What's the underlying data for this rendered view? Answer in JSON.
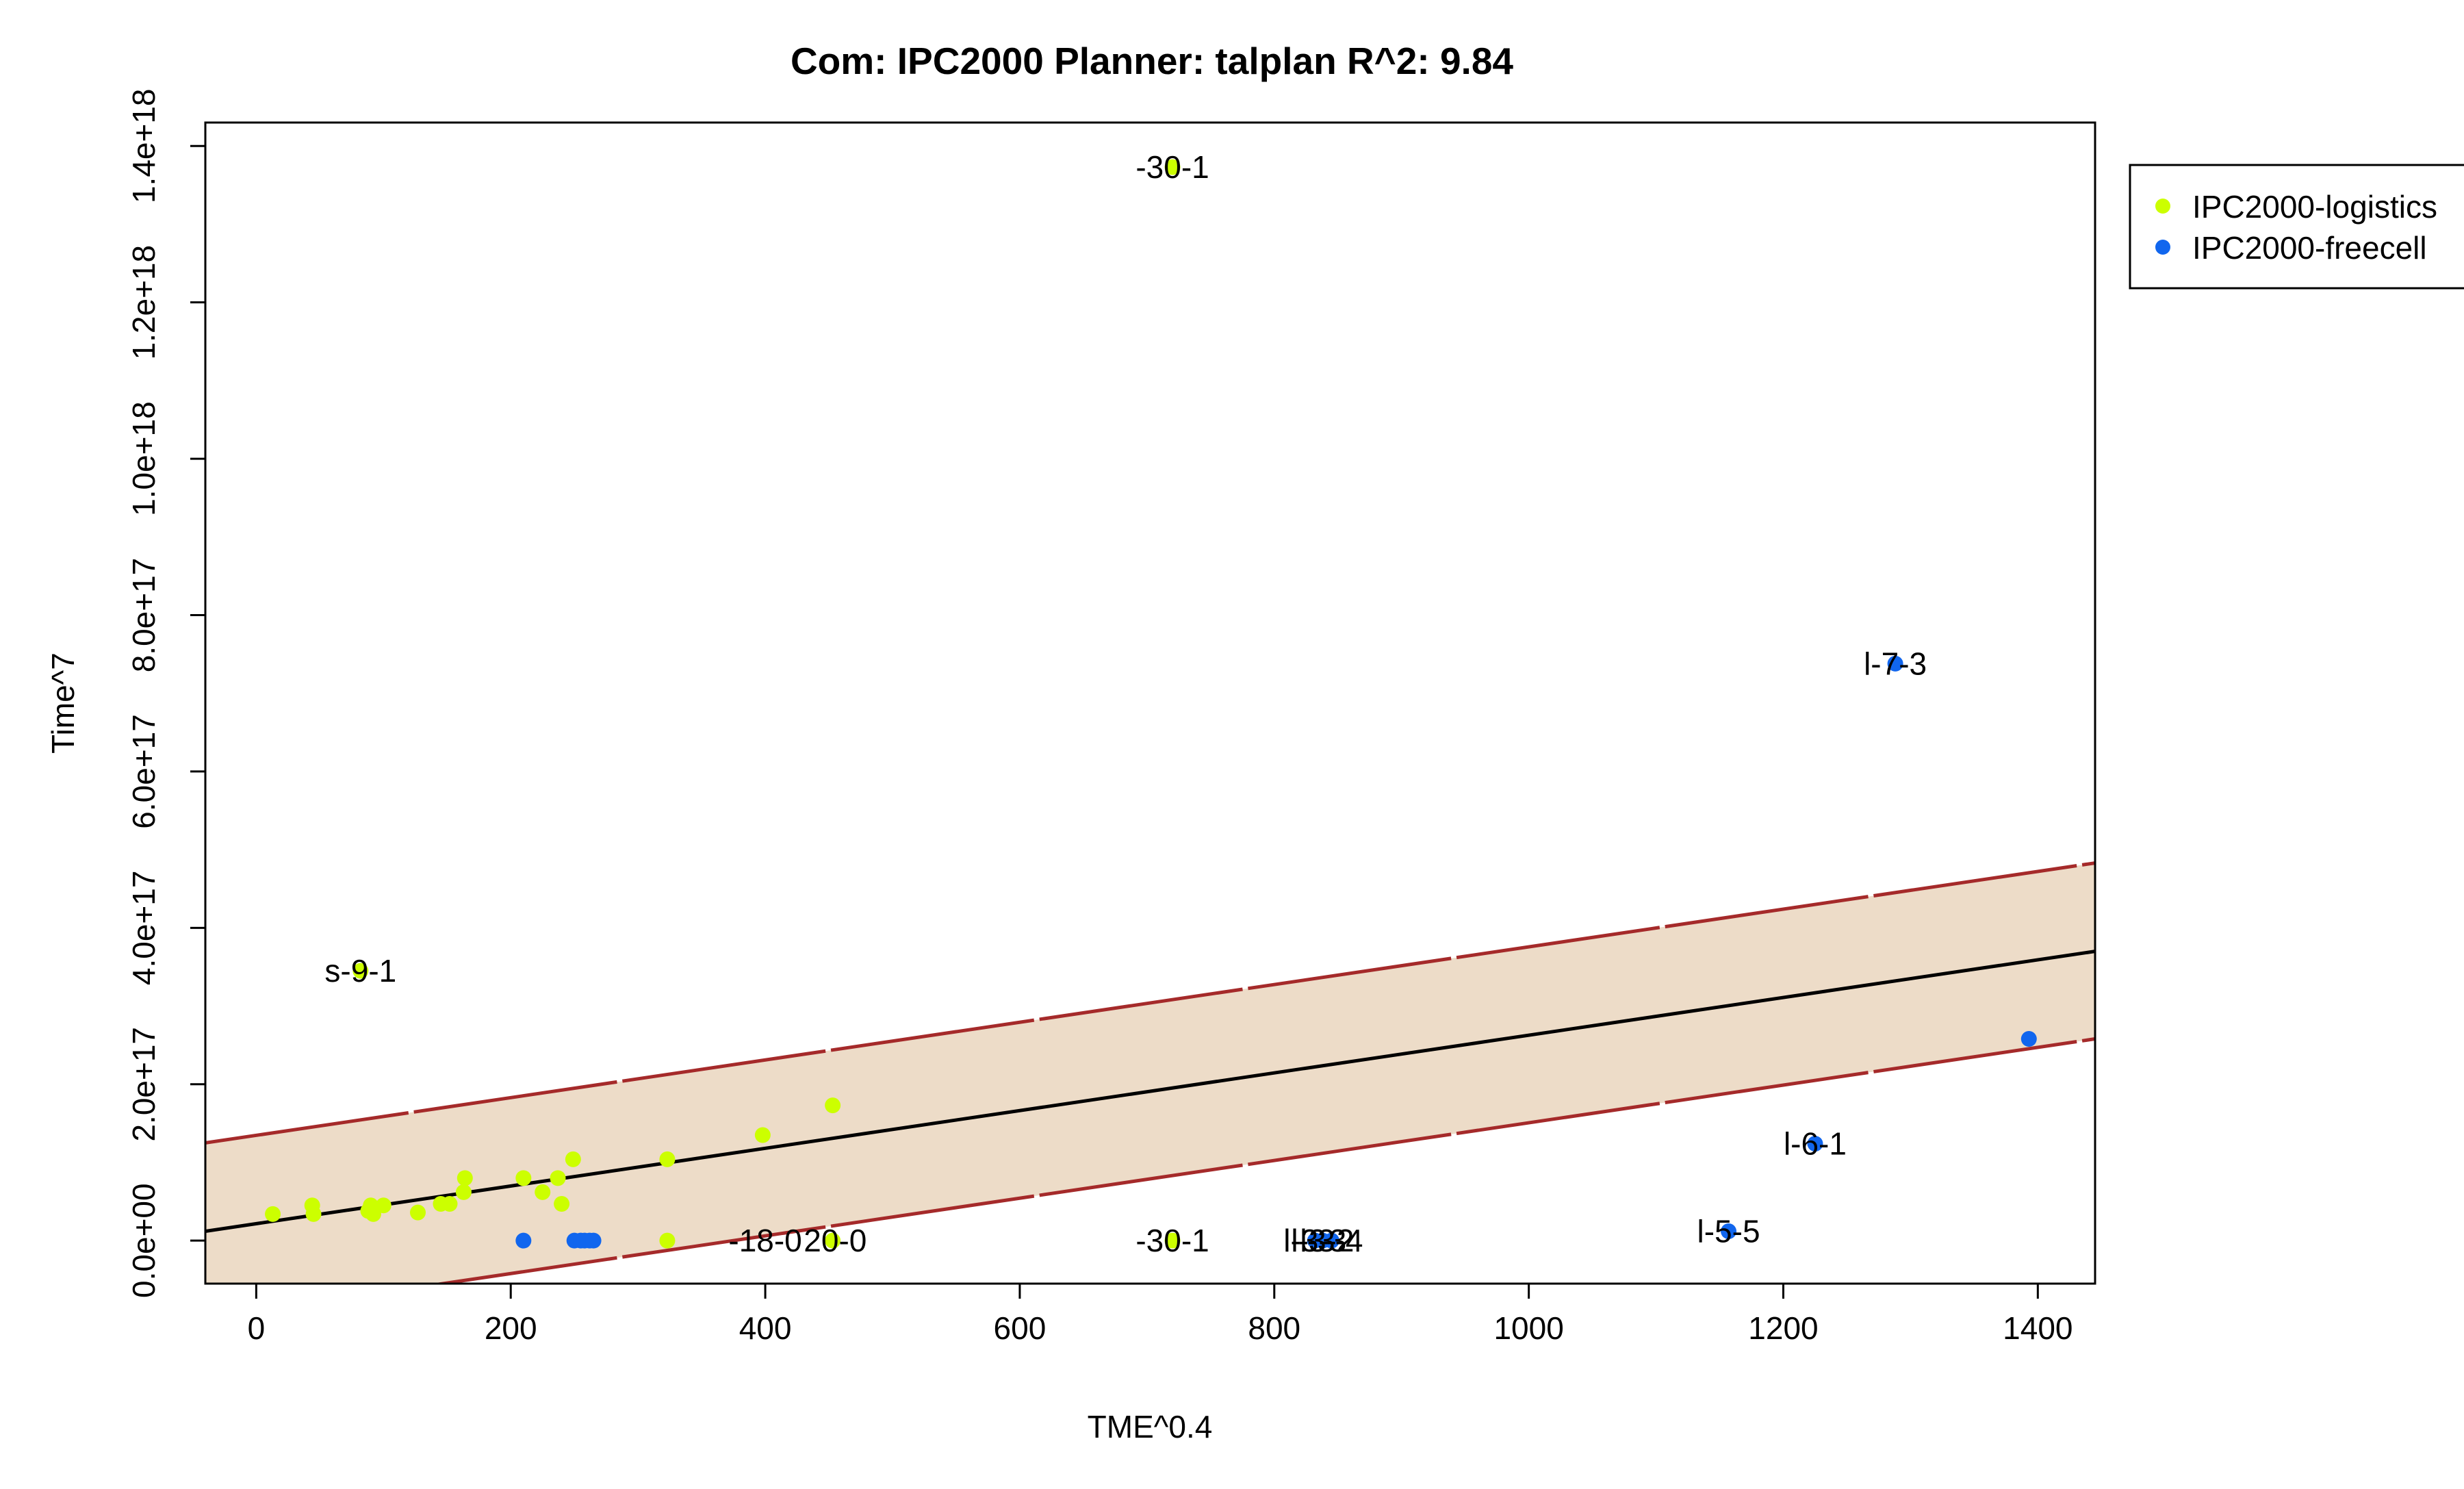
{
  "chart_data": {
    "type": "scatter",
    "title": "Com: IPC2000 Planner: talplan R^2: 9.84",
    "xlabel": "TME^0.4",
    "ylabel": "Time^7",
    "xlim": [
      -40,
      1445
    ],
    "ylim": [
      -5.5e+16,
      1.43e+18
    ],
    "x_ticks": [
      0,
      200,
      400,
      600,
      800,
      1000,
      1200,
      1400
    ],
    "x_tick_labels": [
      "0",
      "200",
      "400",
      "600",
      "800",
      "1000",
      "1200",
      "1400"
    ],
    "y_ticks": [
      0,
      2e+17,
      4e+17,
      6e+17,
      8e+17,
      1e+18,
      1.2e+18,
      1.4e+18
    ],
    "y_tick_labels": [
      "0.0e+00",
      "2.0e+17",
      "4.0e+17",
      "6.0e+17",
      "8.0e+17",
      "1.0e+18",
      "1.2e+18",
      "1.4e+18"
    ],
    "grid": false,
    "legend_position": "top-right outside",
    "colors": {
      "logistics": "#ccff00",
      "freecell": "#1166ee",
      "band_fill": "#eddcc8",
      "band_line": "#a52a2a",
      "fit_line": "#000000"
    },
    "fit_line": {
      "x": [
        -40,
        1445
      ],
      "y": [
        1.2e+16,
        3.7e+17
      ]
    },
    "band_upper": {
      "x": [
        -40,
        1445
      ],
      "y": [
        1.25e+17,
        4.83e+17
      ]
    },
    "band_lower": {
      "x": [
        -40,
        1445
      ],
      "y": [
        -1e+17,
        2.58e+17
      ]
    },
    "series": [
      {
        "name": "IPC2000-logistics",
        "color": "#ccff00",
        "points": [
          {
            "x": 13,
            "y": 3.4e+16
          },
          {
            "x": 44,
            "y": 4.5e+16
          },
          {
            "x": 45,
            "y": 3.4e+16
          },
          {
            "x": 88,
            "y": 3.8e+16
          },
          {
            "x": 90,
            "y": 4.5e+16
          },
          {
            "x": 92,
            "y": 3.4e+16
          },
          {
            "x": 100,
            "y": 4.5e+16
          },
          {
            "x": 127,
            "y": 3.6e+16
          },
          {
            "x": 145,
            "y": 4.7e+16
          },
          {
            "x": 152,
            "y": 4.7e+16
          },
          {
            "x": 163,
            "y": 6.2e+16
          },
          {
            "x": 164,
            "y": 8e+16
          },
          {
            "x": 210,
            "y": 8e+16
          },
          {
            "x": 225,
            "y": 6.2e+16
          },
          {
            "x": 237,
            "y": 8e+16
          },
          {
            "x": 240,
            "y": 4.7e+16
          },
          {
            "x": 249,
            "y": 1.04e+17
          },
          {
            "x": 323,
            "y": 1.04e+17
          },
          {
            "x": 398,
            "y": 1.35e+17
          },
          {
            "x": 453,
            "y": 1.73e+17
          },
          {
            "x": 82,
            "y": 3.45e+17
          },
          {
            "x": 720,
            "y": 1.373e+18
          },
          {
            "x": 323,
            "y": 0
          },
          {
            "x": 453,
            "y": 0
          },
          {
            "x": 720,
            "y": 0
          }
        ]
      },
      {
        "name": "IPC2000-freecell",
        "color": "#1166ee",
        "points": [
          {
            "x": 210,
            "y": 0
          },
          {
            "x": 250,
            "y": 0
          },
          {
            "x": 255,
            "y": 0
          },
          {
            "x": 258,
            "y": 0
          },
          {
            "x": 262,
            "y": 0
          },
          {
            "x": 265,
            "y": 0
          },
          {
            "x": 832,
            "y": 0
          },
          {
            "x": 838,
            "y": 0
          },
          {
            "x": 845,
            "y": 0
          },
          {
            "x": 1157,
            "y": 1.2e+16
          },
          {
            "x": 1225,
            "y": 1.24e+17
          },
          {
            "x": 1288,
            "y": 7.38e+17
          },
          {
            "x": 1393,
            "y": 2.58e+17
          }
        ]
      }
    ],
    "annotations": [
      {
        "text": "-30-1",
        "x": 720,
        "y": 1.373e+18
      },
      {
        "text": "l-7-3",
        "x": 1288,
        "y": 7.38e+17
      },
      {
        "text": "s-9-1",
        "x": 82,
        "y": 3.45e+17
      },
      {
        "text": "l-6-1",
        "x": 1225,
        "y": 1.24e+17
      },
      {
        "text": "l-5-5",
        "x": 1157,
        "y": 1.2e+16
      },
      {
        "text": "-18-0",
        "x": 400,
        "y": 0
      },
      {
        "text": "20-0",
        "x": 455,
        "y": 0
      },
      {
        "text": "-30-1",
        "x": 720,
        "y": 0
      },
      {
        "text": "l-3-3",
        "x": 832,
        "y": 0
      },
      {
        "text": "l-3-4",
        "x": 845,
        "y": 0
      },
      {
        "text": "l-3-2",
        "x": 838,
        "y": 0
      }
    ]
  }
}
